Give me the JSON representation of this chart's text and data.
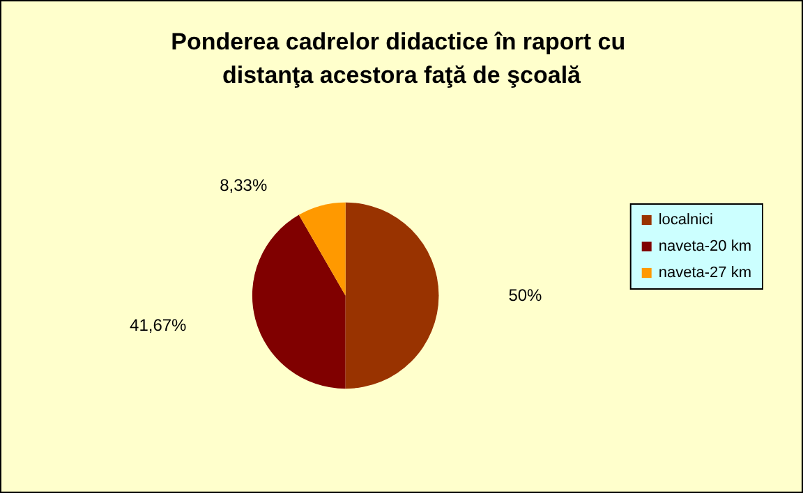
{
  "chart_data": {
    "type": "pie",
    "title": "Ponderea cadrelor didactice în raport cu distanţa acestora faţă de şcoală",
    "categories": [
      "localnici",
      "naveta-20 km",
      "naveta-27 km"
    ],
    "values": [
      50,
      41.67,
      8.33
    ],
    "value_labels": [
      "50%",
      "41,67%",
      "8,33%"
    ],
    "colors": [
      "#993300",
      "#800000",
      "#ff9900"
    ],
    "legend": "right"
  }
}
